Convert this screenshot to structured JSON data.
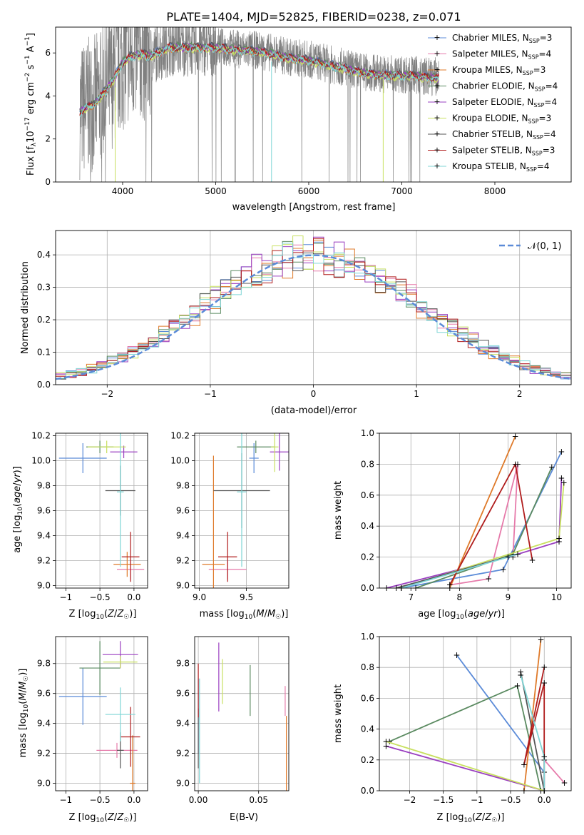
{
  "title": "PLATE=1404, MJD=52825, FIBERID=0238, z=0.071",
  "colors": [
    "#5b8bd8",
    "#e67aaa",
    "#df7a2a",
    "#5a8a60",
    "#9a3fc0",
    "#c8e060",
    "#555555",
    "#b01c1c",
    "#7fd6d6"
  ],
  "legend_labels": [
    {
      "base": "Chabrier MILES, N",
      "sub": "SSP",
      "tail": "=3"
    },
    {
      "base": "Salpeter MILES, N",
      "sub": "SSP",
      "tail": "=4"
    },
    {
      "base": "Kroupa MILES, N",
      "sub": "SSP",
      "tail": "=3"
    },
    {
      "base": "Chabrier ELODIE, N",
      "sub": "SSP",
      "tail": "=4"
    },
    {
      "base": "Salpeter ELODIE, N",
      "sub": "SSP",
      "tail": "=4"
    },
    {
      "base": "Kroupa ELODIE, N",
      "sub": "SSP",
      "tail": "=3"
    },
    {
      "base": "Chabrier STELIB, N",
      "sub": "SSP",
      "tail": "=4"
    },
    {
      "base": "Salpeter STELIB, N",
      "sub": "SSP",
      "tail": "=3"
    },
    {
      "base": "Kroupa STELIB, N",
      "sub": "SSP",
      "tail": "=4"
    }
  ],
  "chart_data": [
    {
      "id": "spectrum",
      "type": "line",
      "xlabel": "wavelength [Angstrom, rest frame]",
      "ylabel": "Flux [f_λ 10^-17 erg cm^-2 s^-1 A^-1]",
      "xlim": [
        3280,
        8820
      ],
      "ylim": [
        0,
        7.2
      ],
      "xticks": [
        4000,
        5000,
        6000,
        7000,
        8000
      ],
      "yticks": [
        0,
        2,
        4,
        6
      ],
      "data_color": "#808080",
      "continuum_x": [
        3540,
        3600,
        3700,
        3800,
        3900,
        4000,
        4100,
        4200,
        4300,
        4500,
        4700,
        5000,
        5200,
        5500,
        5800,
        6000,
        6300,
        6600,
        6900,
        7100,
        7300,
        7400
      ],
      "continuum_y": [
        3.3,
        3.5,
        3.7,
        4.2,
        4.8,
        5.6,
        5.9,
        6.0,
        5.9,
        6.3,
        6.3,
        6.3,
        6.2,
        6.1,
        5.8,
        5.7,
        5.4,
        5.1,
        5.0,
        5.0,
        4.9,
        4.9
      ],
      "grid": false
    },
    {
      "id": "residual-histogram",
      "type": "histogram",
      "xlabel": "(data-model)/error",
      "ylabel": "Normed distribution",
      "xlim": [
        -2.5,
        2.5
      ],
      "ylim": [
        0,
        0.475
      ],
      "xticks": [
        -2,
        -1,
        0,
        1,
        2
      ],
      "yticks": [
        0.0,
        0.1,
        0.2,
        0.3,
        0.4
      ],
      "bin_width": 0.1,
      "reference_curve": "normal(0,1)",
      "legend": "N(0,1)",
      "legend_position": "top-right",
      "grid": true
    },
    {
      "id": "age-vs-Z",
      "type": "errorbar",
      "xlabel": "Z [log10(Z/Z☉)]",
      "ylabel": "age [log10(age/yr)]",
      "xlim": [
        -1.15,
        0.2
      ],
      "ylim": [
        8.98,
        10.22
      ],
      "xticks": [
        -1.0,
        -0.5,
        0.0
      ],
      "yticks": [
        9.0,
        9.2,
        9.4,
        9.6,
        9.8,
        10.0,
        10.2
      ],
      "points": [
        {
          "x": -0.75,
          "y": 10.02,
          "xerr": 0.35,
          "yerr": 0.12
        },
        {
          "x": -0.05,
          "y": 9.13,
          "xerr": 0.2,
          "yerr": 0.08
        },
        {
          "x": -0.1,
          "y": 9.17,
          "xerr": 0.2,
          "yerr": 0.1
        },
        {
          "x": -0.5,
          "y": 10.11,
          "xerr": 0.2,
          "yerr": 0.05
        },
        {
          "x": -0.15,
          "y": 10.07,
          "xerr": 0.2,
          "yerr": 0.05
        },
        {
          "x": -0.4,
          "y": 10.11,
          "xerr": 0.28,
          "yerr": 0.05
        },
        {
          "x": -0.2,
          "y": 9.76,
          "xerr": 0.22,
          "yerr": 0.2
        },
        {
          "x": -0.05,
          "y": 9.23,
          "xerr": 0.13,
          "yerr": 0.2
        },
        {
          "x": -0.2,
          "y": 9.75,
          "xerr": 0.05,
          "yerr": 0.6
        }
      ],
      "grid": true
    },
    {
      "id": "age-vs-mass",
      "type": "errorbar",
      "xlabel": "mass [log10(M/M☉)]",
      "ylabel": "",
      "xlim": [
        8.95,
        9.95
      ],
      "ylim": [
        8.98,
        10.22
      ],
      "xticks": [
        9.0,
        9.5
      ],
      "yticks": [
        9.0,
        9.2,
        9.4,
        9.6,
        9.8,
        10.0,
        10.2
      ],
      "points": [
        {
          "x": 9.58,
          "y": 10.02,
          "xerr": 0.05,
          "yerr": 0.12
        },
        {
          "x": 9.3,
          "y": 9.13,
          "xerr": 0.2,
          "yerr": 0.08
        },
        {
          "x": 9.15,
          "y": 9.17,
          "xerr": 0.12,
          "yerr": 0.87
        },
        {
          "x": 9.6,
          "y": 10.11,
          "xerr": 0.2,
          "yerr": 0.05
        },
        {
          "x": 9.85,
          "y": 10.07,
          "xerr": 0.1,
          "yerr": 0.15
        },
        {
          "x": 9.8,
          "y": 10.11,
          "xerr": 0.04,
          "yerr": 0.2
        },
        {
          "x": 9.45,
          "y": 9.76,
          "xerr": 0.3,
          "yerr": 0.3
        },
        {
          "x": 9.3,
          "y": 9.23,
          "xerr": 0.1,
          "yerr": 0.2
        },
        {
          "x": 9.45,
          "y": 9.75,
          "xerr": 0.05,
          "yerr": 0.6
        }
      ],
      "grid": true
    },
    {
      "id": "mass-weight-vs-age",
      "type": "line",
      "xlabel": "age [log10(age/yr)]",
      "ylabel": "mass weight",
      "xlim": [
        6.35,
        10.3
      ],
      "ylim": [
        0,
        1.0
      ],
      "xticks": [
        7,
        8,
        9,
        10
      ],
      "yticks": [
        0.0,
        0.2,
        0.4,
        0.6,
        0.8,
        1.0
      ],
      "series": [
        {
          "x": [
            6.8,
            8.9,
            10.1
          ],
          "y": [
            0.0,
            0.12,
            0.88
          ]
        },
        {
          "x": [
            7.8,
            8.6,
            9.2,
            9.1
          ],
          "y": [
            0.02,
            0.06,
            0.8,
            0.2
          ]
        },
        {
          "x": [
            7.8,
            9.15
          ],
          "y": [
            0.0,
            0.98
          ]
        },
        {
          "x": [
            7.1,
            9.1,
            9.9
          ],
          "y": [
            0.0,
            0.22,
            0.78
          ]
        },
        {
          "x": [
            6.5,
            9.0,
            10.05,
            10.1
          ],
          "y": [
            0.0,
            0.2,
            0.3,
            0.71
          ]
        },
        {
          "x": [
            6.8,
            10.05,
            10.15
          ],
          "y": [
            0.0,
            0.32,
            0.68
          ]
        },
        {
          "x": [
            6.7,
            9.2
          ],
          "y": [
            0.0,
            0.22
          ]
        },
        {
          "x": [
            7.8,
            9.15,
            9.5
          ],
          "y": [
            0.02,
            0.8,
            0.18
          ]
        },
        {
          "x": [
            6.8,
            9.0,
            9.2
          ],
          "y": [
            0.0,
            0.2,
            0.22
          ]
        }
      ],
      "grid": true
    },
    {
      "id": "mass-vs-Z",
      "type": "errorbar",
      "xlabel": "Z [log10(Z/Z☉)]",
      "ylabel": "mass [log10(M/M☉)]",
      "xlim": [
        -1.15,
        0.2
      ],
      "ylim": [
        8.95,
        9.98
      ],
      "xticks": [
        -1.0,
        -0.5,
        0.0
      ],
      "yticks": [
        9.0,
        9.2,
        9.4,
        9.6,
        9.8
      ],
      "points": [
        {
          "x": -0.75,
          "y": 9.58,
          "xerr": 0.35,
          "yerr": 0.19
        },
        {
          "x": -0.25,
          "y": 9.22,
          "xerr": 0.3,
          "yerr": 0.05
        },
        {
          "x": -0.02,
          "y": 9.0,
          "xerr": 0.04,
          "yerr": 0.32
        },
        {
          "x": -0.5,
          "y": 9.77,
          "xerr": 0.3,
          "yerr": 0.18
        },
        {
          "x": -0.2,
          "y": 9.86,
          "xerr": 0.26,
          "yerr": 0.09
        },
        {
          "x": -0.2,
          "y": 9.81,
          "xerr": 0.25,
          "yerr": 0.04
        },
        {
          "x": -0.2,
          "y": 9.22,
          "xerr": 0.05,
          "yerr": 0.12
        },
        {
          "x": -0.05,
          "y": 9.31,
          "xerr": 0.14,
          "yerr": 0.2
        },
        {
          "x": -0.2,
          "y": 9.46,
          "xerr": 0.22,
          "yerr": 0.18
        }
      ],
      "grid": true
    },
    {
      "id": "mass-vs-EBV",
      "type": "errorbar",
      "xlabel": "E(B-V)",
      "ylabel": "",
      "xlim": [
        -0.003,
        0.075
      ],
      "ylim": [
        8.95,
        9.98
      ],
      "xticks": [
        0.0,
        0.05
      ],
      "yticks": [
        9.0,
        9.2,
        9.4,
        9.6,
        9.8
      ],
      "points": [
        {
          "x": 0.0,
          "y": 9.45,
          "xerr": 0.0,
          "yerr": 0.25
        },
        {
          "x": 0.072,
          "y": 9.55,
          "xerr": 0.0,
          "yerr": 0.1
        },
        {
          "x": 0.073,
          "y": 9.2,
          "xerr": 0.0,
          "yerr": 0.25
        },
        {
          "x": 0.043,
          "y": 9.62,
          "xerr": 0.0,
          "yerr": 0.17
        },
        {
          "x": 0.017,
          "y": 9.71,
          "xerr": 0.0,
          "yerr": 0.23
        },
        {
          "x": 0.02,
          "y": 9.68,
          "xerr": 0.0,
          "yerr": 0.15
        },
        {
          "x": 0.0,
          "y": 9.3,
          "xerr": 0.0,
          "yerr": 0.2
        },
        {
          "x": 0.0,
          "y": 9.62,
          "xerr": 0.0,
          "yerr": 0.18
        },
        {
          "x": 0.001,
          "y": 9.35,
          "xerr": 0.0,
          "yerr": 0.35
        }
      ],
      "grid": true
    },
    {
      "id": "mass-weight-vs-Z",
      "type": "line",
      "xlabel": "Z [log10(Z/Z☉)]",
      "ylabel": "mass weight",
      "xlim": [
        -2.45,
        0.4
      ],
      "ylim": [
        0,
        1.0
      ],
      "xticks": [
        -2.0,
        -1.5,
        -1.0,
        -0.5,
        0.0
      ],
      "yticks": [
        0.0,
        0.2,
        0.4,
        0.6,
        0.8,
        1.0
      ],
      "series": [
        {
          "x": [
            -1.3,
            0.0,
            0.0
          ],
          "y": [
            0.88,
            0.12,
            0.0
          ]
        },
        {
          "x": [
            0.3,
            0.0,
            0.0
          ],
          "y": [
            0.05,
            0.2,
            0.0
          ]
        },
        {
          "x": [
            -0.05,
            -0.3
          ],
          "y": [
            0.98,
            0.0
          ]
        },
        {
          "x": [
            -2.3,
            -0.4,
            -0.05
          ],
          "y": [
            0.32,
            0.68,
            0.0
          ]
        },
        {
          "x": [
            -2.35,
            0.0
          ],
          "y": [
            0.29,
            0.0
          ]
        },
        {
          "x": [
            -2.35,
            0.0
          ],
          "y": [
            0.32,
            0.0
          ]
        },
        {
          "x": [
            -0.35,
            0.0
          ],
          "y": [
            0.77,
            0.0
          ]
        },
        {
          "x": [
            0.0,
            -0.3,
            0.0,
            0.0
          ],
          "y": [
            0.8,
            0.17,
            0.7,
            0.0
          ]
        },
        {
          "x": [
            -0.35,
            0.0,
            0.0
          ],
          "y": [
            0.75,
            0.22,
            0.0
          ]
        }
      ],
      "grid": true
    }
  ]
}
